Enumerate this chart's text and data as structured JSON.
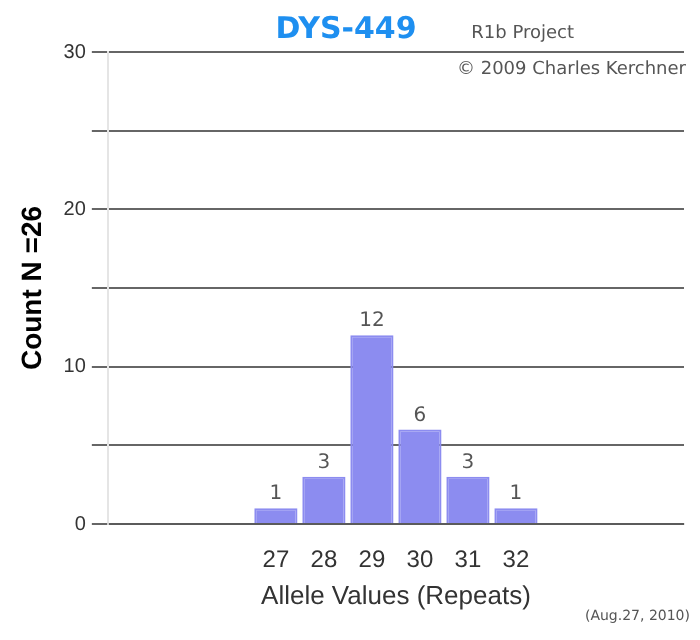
{
  "chart_data": {
    "type": "bar",
    "title": "DYS-449",
    "xlabel": "Allele Values (Repeats)",
    "ylabel": "Count N =26",
    "categories": [
      null,
      null,
      null,
      "27",
      "28",
      "29",
      "30",
      "31",
      "32",
      null,
      null,
      null
    ],
    "values": [
      null,
      null,
      null,
      1,
      3,
      12,
      6,
      3,
      1,
      null,
      null,
      null
    ],
    "color": "#8c8cf0",
    "ylim": [
      0,
      30
    ],
    "yticks": [
      0,
      {
        "value": 5,
        "label": null
      },
      10,
      {
        "value": 15,
        "label": null
      },
      20,
      {
        "value": 25,
        "label": null
      },
      30
    ],
    "grid": "y",
    "data_labels": true,
    "annotations": [
      "R1b Project",
      "© 2009 Charles Kerchner",
      "(Aug.27, 2010)"
    ]
  }
}
